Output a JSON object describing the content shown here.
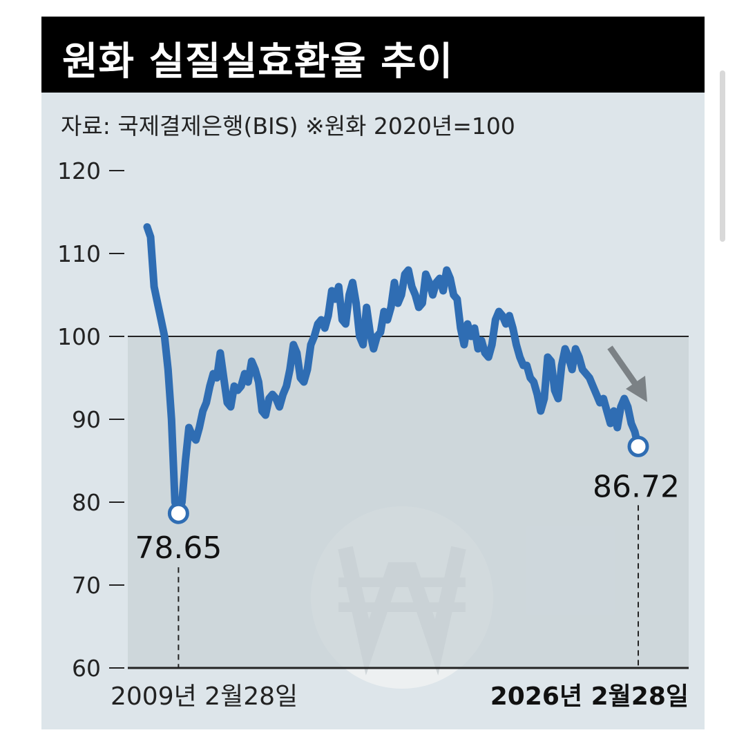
{
  "header": {
    "title": "원화 실질실효환율 추이",
    "source": "자료: 국제결제은행(BIS) ※원화 2020년=100"
  },
  "colors": {
    "line": "#2f6db3",
    "shaded_band": "#c8d1d6",
    "background": "#dde5ea",
    "title_bar": "#000000",
    "arrow": "#7b8185"
  },
  "icons": {
    "background_symbol": "won-sign-icon",
    "trend_arrow": "down-right-arrow-icon"
  },
  "chart_data": {
    "type": "line",
    "title": "원화 실질실효환율 추이",
    "ylim": [
      60,
      120
    ],
    "yticks": [
      120,
      110,
      100,
      90,
      80,
      70,
      60
    ],
    "reference_line": 100,
    "grid": false,
    "x_start_label": "2009년 2월28일",
    "x_end_label": "2026년 2월28일",
    "annotations": [
      {
        "label": "78.65",
        "value": 78.65,
        "point": "min"
      },
      {
        "label": "86.72",
        "value": 86.72,
        "point": "last"
      }
    ],
    "series": [
      {
        "values": [
          113.2,
          112.0,
          106.0,
          104.0,
          102.0,
          100.0,
          96.0,
          90.0,
          80.0,
          78.65,
          80.0,
          85.0,
          89.0,
          88.0,
          87.5,
          89.0,
          91.0,
          92.0,
          94.0,
          95.5,
          95.0,
          98.0,
          95.0,
          92.0,
          91.5,
          94.0,
          93.5,
          94.0,
          95.5,
          94.5,
          97.0,
          96.0,
          94.5,
          91.0,
          90.5,
          92.5,
          93.0,
          92.5,
          91.5,
          93.0,
          94.0,
          96.0,
          99.0,
          98.0,
          95.0,
          94.5,
          96.0,
          99.0,
          100.0,
          101.5,
          102.0,
          101.0,
          102.5,
          105.5,
          104.5,
          106.0,
          102.0,
          101.5,
          105.0,
          106.5,
          104.0,
          100.0,
          99.0,
          103.5,
          100.5,
          98.5,
          100.0,
          100.5,
          103.0,
          102.0,
          103.5,
          106.5,
          104.0,
          105.0,
          107.5,
          108.0,
          106.0,
          105.0,
          103.5,
          104.0,
          107.5,
          106.5,
          105.0,
          106.5,
          107.0,
          105.5,
          108.0,
          107.0,
          105.0,
          104.5,
          101.0,
          99.0,
          101.5,
          100.0,
          101.0,
          98.5,
          99.5,
          98.0,
          97.5,
          99.0,
          102.0,
          103.0,
          102.5,
          101.5,
          102.5,
          101.0,
          99.0,
          97.5,
          96.5,
          96.5,
          95.0,
          94.5,
          93.0,
          91.0,
          92.5,
          97.5,
          97.0,
          93.5,
          92.5,
          96.5,
          98.5,
          97.5,
          96.0,
          98.5,
          97.5,
          96.0,
          95.5,
          95.0,
          94.0,
          93.0,
          92.0,
          92.5,
          91.0,
          89.5,
          91.0,
          89.0,
          91.5,
          92.5,
          91.5,
          89.5,
          88.5,
          86.72
        ]
      }
    ]
  }
}
